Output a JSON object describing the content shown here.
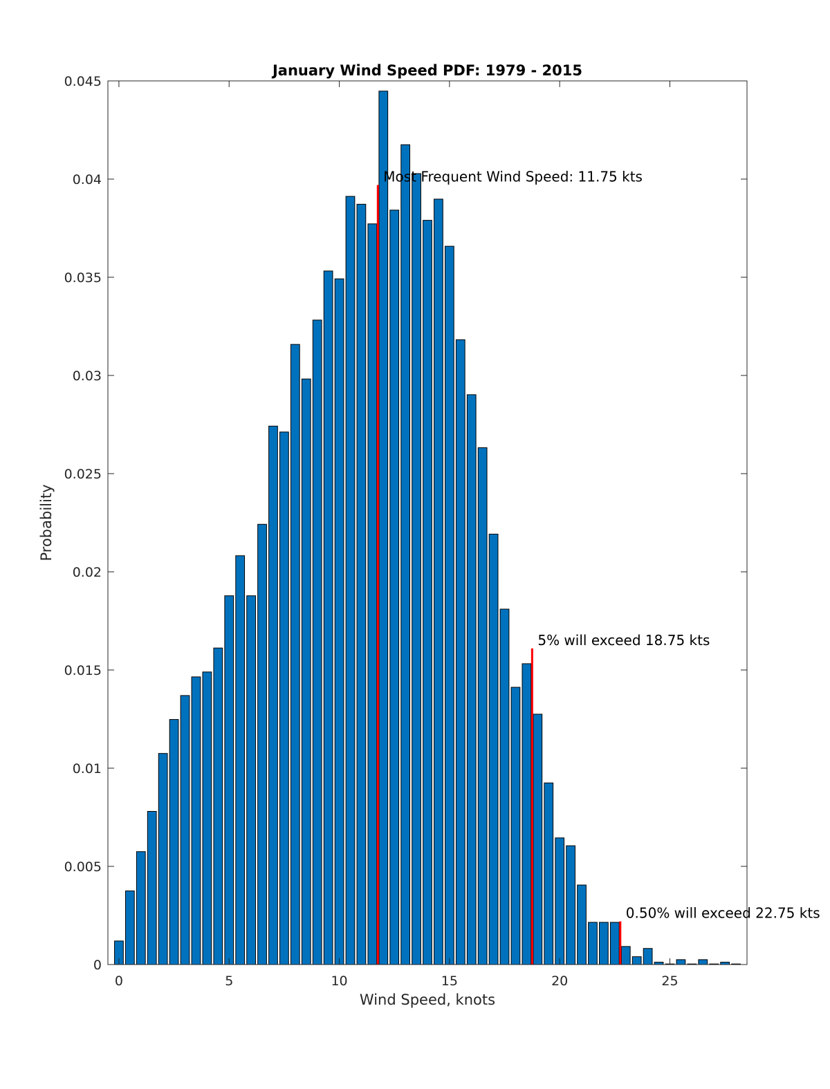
{
  "chart_data": {
    "type": "bar",
    "title": "January Wind Speed PDF: 1979 - 2015",
    "xlabel": "Wind Speed, knots",
    "ylabel": "Probability",
    "xlim": [
      -0.5,
      28.5
    ],
    "ylim": [
      0,
      0.045
    ],
    "bin_width": 0.5,
    "x": [
      0,
      0.5,
      1,
      1.5,
      2,
      2.5,
      3,
      3.5,
      4,
      4.5,
      5,
      5.5,
      6,
      6.5,
      7,
      7.5,
      8,
      8.5,
      9,
      9.5,
      10,
      10.5,
      11,
      11.5,
      12,
      12.5,
      13,
      13.5,
      14,
      14.5,
      15,
      15.5,
      16,
      16.5,
      17,
      17.5,
      18,
      18.5,
      19,
      19.5,
      20,
      20.5,
      21,
      21.5,
      22,
      22.5,
      23,
      23.5,
      24,
      24.5,
      25,
      25.5,
      26,
      26.5,
      27,
      27.5,
      28
    ],
    "values": [
      0.0012,
      0.00375,
      0.00575,
      0.0078,
      0.01075,
      0.01248,
      0.0137,
      0.01465,
      0.0149,
      0.01612,
      0.01878,
      0.02082,
      0.01878,
      0.02242,
      0.02742,
      0.02712,
      0.03158,
      0.02982,
      0.03282,
      0.03532,
      0.03492,
      0.03912,
      0.03872,
      0.03772,
      0.04448,
      0.03842,
      0.04175,
      0.04028,
      0.0379,
      0.03898,
      0.03658,
      0.03182,
      0.02902,
      0.02632,
      0.02192,
      0.0181,
      0.01412,
      0.01532,
      0.01275,
      0.00925,
      0.00645,
      0.00605,
      0.00405,
      0.00215,
      0.00215,
      0.00215,
      0.00092,
      0.0004,
      0.00082,
      0.00012,
      3e-05,
      0.00025,
      3e-05,
      0.00025,
      3e-05,
      0.00012,
      3e-05
    ],
    "bar_color": "#0072BD",
    "marker_color": "#FF0000",
    "xticks": [
      0,
      5,
      10,
      15,
      20,
      25
    ],
    "xtick_labels": [
      "0",
      "5",
      "10",
      "15",
      "20",
      "25"
    ],
    "yticks": [
      0,
      0.005,
      0.01,
      0.015,
      0.02,
      0.025,
      0.03,
      0.035,
      0.04,
      0.045
    ],
    "ytick_labels": [
      "0",
      "0.005",
      "0.01",
      "0.015",
      "0.02",
      "0.025",
      "0.03",
      "0.035",
      "0.04",
      "0.045"
    ],
    "markers": [
      {
        "x": 11.75,
        "height": 0.0397,
        "label": "Most Frequent Wind Speed: 11.75 kts"
      },
      {
        "x": 18.75,
        "height": 0.0161,
        "label": "5% will exceed 18.75 kts"
      },
      {
        "x": 22.75,
        "height": 0.0022,
        "label": "0.50% will exceed 22.75 kts"
      }
    ]
  }
}
